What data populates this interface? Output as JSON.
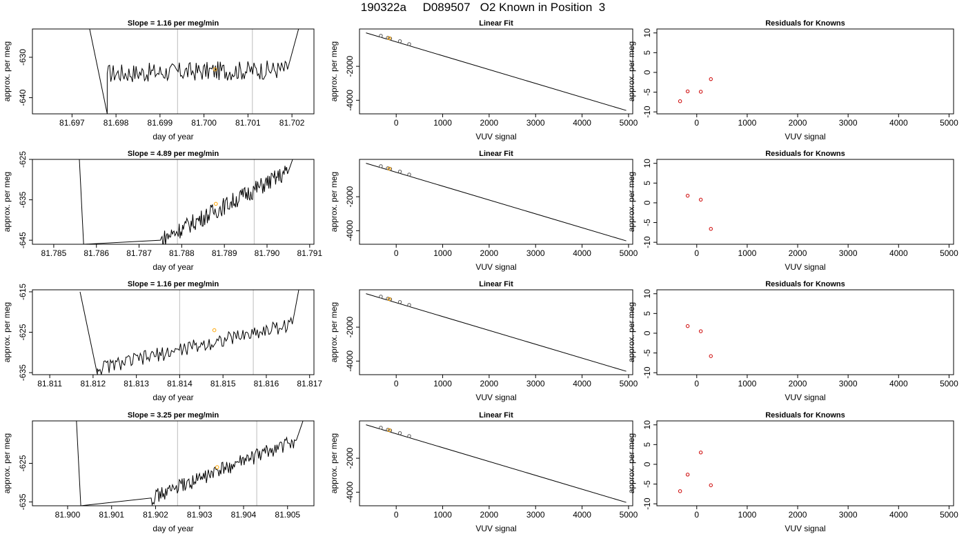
{
  "figure_title": "190322a     D089507   O2 Known in Position  3",
  "colors": {
    "trace": "#000000",
    "vline": "#c8c8c8",
    "known_point": "#ffa500",
    "residual_point": "#cc0000",
    "fit_point": "#555555"
  },
  "chart_data": [
    {
      "type": "line",
      "title": "Slope =  1.16  per meg/min",
      "xlabel": "day of year",
      "ylabel": "approx. per meg",
      "xlim": [
        81.6961,
        81.7025
      ],
      "ylim": [
        -644,
        -623
      ],
      "xticks": [
        81.697,
        81.698,
        81.699,
        81.7,
        81.701,
        81.702
      ],
      "xtick_labels": [
        "81.697",
        "81.698",
        "81.699",
        "81.700",
        "81.701",
        "81.702"
      ],
      "yticks": [
        -640,
        -630
      ],
      "ytick_labels": [
        "-640",
        "-630"
      ],
      "vlines": [
        81.6994,
        81.7011
      ],
      "known_point": {
        "x": 81.70025,
        "y": -633
      },
      "segments": [
        {
          "x0": 81.6974,
          "x1": 81.6978,
          "y0": -623,
          "y1": -644
        },
        {
          "x0": 81.6978,
          "x1": 81.7019,
          "y0": -634,
          "y1": -633
        },
        {
          "x0": 81.7019,
          "x1": 81.70215,
          "y0": -633,
          "y1": -623
        }
      ],
      "noise": 2.4
    },
    {
      "type": "line",
      "title": "Linear Fit",
      "xlabel": "VUV signal",
      "ylabel": "approx. per meg",
      "xlim": [
        -790,
        5090
      ],
      "ylim": [
        -4800,
        200
      ],
      "xticks": [
        0,
        1000,
        2000,
        3000,
        4000,
        5000
      ],
      "xtick_labels": [
        "0",
        "1000",
        "2000",
        "3000",
        "4000",
        "5000"
      ],
      "yticks": [
        -4000,
        -2000
      ],
      "ytick_labels": [
        "-4000",
        "-2000"
      ],
      "line": {
        "x": [
          -650,
          4950
        ],
        "y": [
          -30,
          -4600
        ]
      },
      "points": {
        "x": [
          -330,
          -180,
          -130,
          80,
          280
        ],
        "y": [
          -200,
          -320,
          -360,
          -520,
          -690
        ]
      },
      "known_point": {
        "x": -150,
        "y": -340
      }
    },
    {
      "type": "scatter",
      "title": "Residuals for Knowns",
      "xlabel": "VUV signal",
      "ylabel": "approx. per meg",
      "xlim": [
        -790,
        5090
      ],
      "ylim": [
        -10.5,
        11
      ],
      "xticks": [
        0,
        1000,
        2000,
        3000,
        4000,
        5000
      ],
      "xtick_labels": [
        "0",
        "1000",
        "2000",
        "3000",
        "4000",
        "5000"
      ],
      "yticks": [
        -10,
        -5,
        0,
        5,
        10
      ],
      "ytick_labels": [
        "-10",
        "-5",
        "0",
        "5",
        "10"
      ],
      "points": {
        "x": [
          -330,
          -180,
          80,
          280
        ],
        "y": [
          -7.3,
          -4.8,
          -4.9,
          -1.7
        ]
      }
    },
    {
      "type": "line",
      "title": "Slope =  4.89  per meg/min",
      "xlabel": "day of year",
      "ylabel": "approx. per meg",
      "xlim": [
        81.7845,
        81.7911
      ],
      "ylim": [
        -646,
        -625
      ],
      "xticks": [
        81.785,
        81.786,
        81.787,
        81.788,
        81.789,
        81.79,
        81.791
      ],
      "xtick_labels": [
        "81.785",
        "81.786",
        "81.787",
        "81.788",
        "81.789",
        "81.790",
        "81.791"
      ],
      "yticks": [
        -645,
        -635,
        -625
      ],
      "ytick_labels": [
        "-645",
        "-635",
        "-625"
      ],
      "vlines": [
        81.7879,
        81.7897
      ],
      "known_point": {
        "x": 81.7888,
        "y": -636
      },
      "segments": [
        {
          "x0": 81.7856,
          "x1": 81.7857,
          "y0": -625,
          "y1": -646
        },
        {
          "x0": 81.7875,
          "x1": 81.7905,
          "y0": -645,
          "y1": -628
        },
        {
          "x0": 81.7905,
          "x1": 81.7906,
          "y0": -628,
          "y1": -625
        }
      ],
      "noise": 2.2
    },
    {
      "type": "line",
      "title": "Linear Fit",
      "xlabel": "VUV signal",
      "ylabel": "approx. per meg",
      "xlim": [
        -790,
        5090
      ],
      "ylim": [
        -4800,
        200
      ],
      "xticks": [
        0,
        1000,
        2000,
        3000,
        4000,
        5000
      ],
      "xtick_labels": [
        "0",
        "1000",
        "2000",
        "3000",
        "4000",
        "5000"
      ],
      "yticks": [
        -4000,
        -2000
      ],
      "ytick_labels": [
        "-4000",
        "-2000"
      ],
      "line": {
        "x": [
          -650,
          4950
        ],
        "y": [
          -30,
          -4600
        ]
      },
      "points": {
        "x": [
          -330,
          -180,
          -130,
          80,
          280
        ],
        "y": [
          -200,
          -320,
          -360,
          -520,
          -690
        ]
      },
      "known_point": {
        "x": -150,
        "y": -340
      }
    },
    {
      "type": "scatter",
      "title": "Residuals for Knowns",
      "xlabel": "VUV signal",
      "ylabel": "approx. per meg",
      "xlim": [
        -790,
        5090
      ],
      "ylim": [
        -10.5,
        11
      ],
      "xticks": [
        0,
        1000,
        2000,
        3000,
        4000,
        5000
      ],
      "xtick_labels": [
        "0",
        "1000",
        "2000",
        "3000",
        "4000",
        "5000"
      ],
      "yticks": [
        -10,
        -5,
        0,
        5,
        10
      ],
      "ytick_labels": [
        "-10",
        "-5",
        "0",
        "5",
        "10"
      ],
      "points": {
        "x": [
          -180,
          80,
          280
        ],
        "y": [
          1.8,
          0.8,
          -6.6
        ]
      }
    },
    {
      "type": "line",
      "title": "Slope =  1.16  per meg/min",
      "xlabel": "day of year",
      "ylabel": "approx. per meg",
      "xlim": [
        81.8106,
        81.8171
      ],
      "ylim": [
        -635.5,
        -614.5
      ],
      "xticks": [
        81.811,
        81.812,
        81.813,
        81.814,
        81.815,
        81.816,
        81.817
      ],
      "xtick_labels": [
        "81.811",
        "81.812",
        "81.813",
        "81.814",
        "81.815",
        "81.816",
        "81.817"
      ],
      "yticks": [
        -635,
        -625,
        -615
      ],
      "ytick_labels": [
        "-635",
        "-625",
        "-615"
      ],
      "vlines": [
        81.814,
        81.8157
      ],
      "known_point": {
        "x": 81.8148,
        "y": -624.5
      },
      "segments": [
        {
          "x0": 81.8117,
          "x1": 81.8121,
          "y0": -615,
          "y1": -635.5
        },
        {
          "x0": 81.8121,
          "x1": 81.8166,
          "y0": -634,
          "y1": -623
        },
        {
          "x0": 81.8166,
          "x1": 81.81675,
          "y0": -623,
          "y1": -614.5
        }
      ],
      "noise": 1.8
    },
    {
      "type": "line",
      "title": "Linear Fit",
      "xlabel": "VUV signal",
      "ylabel": "approx. per meg",
      "xlim": [
        -790,
        5090
      ],
      "ylim": [
        -4800,
        200
      ],
      "xticks": [
        0,
        1000,
        2000,
        3000,
        4000,
        5000
      ],
      "xtick_labels": [
        "0",
        "1000",
        "2000",
        "3000",
        "4000",
        "5000"
      ],
      "yticks": [
        -4000,
        -2000
      ],
      "ytick_labels": [
        "-4000",
        "-2000"
      ],
      "line": {
        "x": [
          -650,
          4950
        ],
        "y": [
          -30,
          -4600
        ]
      },
      "points": {
        "x": [
          -330,
          -180,
          -130,
          80,
          280
        ],
        "y": [
          -200,
          -320,
          -360,
          -520,
          -690
        ]
      },
      "known_point": {
        "x": -150,
        "y": -340
      }
    },
    {
      "type": "scatter",
      "title": "Residuals for Knowns",
      "xlabel": "VUV signal",
      "ylabel": "approx. per meg",
      "xlim": [
        -790,
        5090
      ],
      "ylim": [
        -10.5,
        11
      ],
      "xticks": [
        0,
        1000,
        2000,
        3000,
        4000,
        5000
      ],
      "xtick_labels": [
        "0",
        "1000",
        "2000",
        "3000",
        "4000",
        "5000"
      ],
      "yticks": [
        -10,
        -5,
        0,
        5,
        10
      ],
      "ytick_labels": [
        "-10",
        "-5",
        "0",
        "5",
        "10"
      ],
      "points": {
        "x": [
          -180,
          80,
          280
        ],
        "y": [
          1.8,
          0.5,
          -5.8
        ]
      }
    },
    {
      "type": "line",
      "title": "Slope =  3.25  per meg/min",
      "xlabel": "day of year",
      "ylabel": "approx. per meg",
      "xlim": [
        81.8992,
        81.9056
      ],
      "ylim": [
        -636,
        -614
      ],
      "xticks": [
        81.9,
        81.901,
        81.902,
        81.903,
        81.904,
        81.905
      ],
      "xtick_labels": [
        "81.900",
        "81.901",
        "81.902",
        "81.903",
        "81.904",
        "81.905"
      ],
      "yticks": [
        -635,
        -625
      ],
      "ytick_labels": [
        "-635",
        "-625"
      ],
      "vlines": [
        81.9025,
        81.9043
      ],
      "known_point": {
        "x": 81.9034,
        "y": -626
      },
      "segments": [
        {
          "x0": 81.9002,
          "x1": 81.9003,
          "y0": -614,
          "y1": -636
        },
        {
          "x0": 81.9019,
          "x1": 81.9052,
          "y0": -634,
          "y1": -619
        },
        {
          "x0": 81.9052,
          "x1": 81.90535,
          "y0": -619,
          "y1": -614
        }
      ],
      "noise": 1.9
    },
    {
      "type": "line",
      "title": "Linear Fit",
      "xlabel": "VUV signal",
      "ylabel": "approx. per meg",
      "xlim": [
        -790,
        5090
      ],
      "ylim": [
        -4800,
        200
      ],
      "xticks": [
        0,
        1000,
        2000,
        3000,
        4000,
        5000
      ],
      "xtick_labels": [
        "0",
        "1000",
        "2000",
        "3000",
        "4000",
        "5000"
      ],
      "yticks": [
        -4000,
        -2000
      ],
      "ytick_labels": [
        "-4000",
        "-2000"
      ],
      "line": {
        "x": [
          -650,
          4950
        ],
        "y": [
          -30,
          -4600
        ]
      },
      "points": {
        "x": [
          -330,
          -180,
          -130,
          80,
          280
        ],
        "y": [
          -200,
          -320,
          -360,
          -520,
          -690
        ]
      },
      "known_point": {
        "x": -150,
        "y": -340
      }
    },
    {
      "type": "scatter",
      "title": "Residuals for Knowns",
      "xlabel": "VUV signal",
      "ylabel": "approx. per meg",
      "xlim": [
        -790,
        5090
      ],
      "ylim": [
        -10.5,
        11
      ],
      "xticks": [
        0,
        1000,
        2000,
        3000,
        4000,
        5000
      ],
      "xtick_labels": [
        "0",
        "1000",
        "2000",
        "3000",
        "4000",
        "5000"
      ],
      "yticks": [
        -10,
        -5,
        0,
        5,
        10
      ],
      "ytick_labels": [
        "-10",
        "-5",
        "0",
        "5",
        "10"
      ],
      "points": {
        "x": [
          -330,
          -180,
          80,
          280
        ],
        "y": [
          -6.8,
          -2.6,
          3.0,
          -5.3
        ]
      }
    }
  ]
}
